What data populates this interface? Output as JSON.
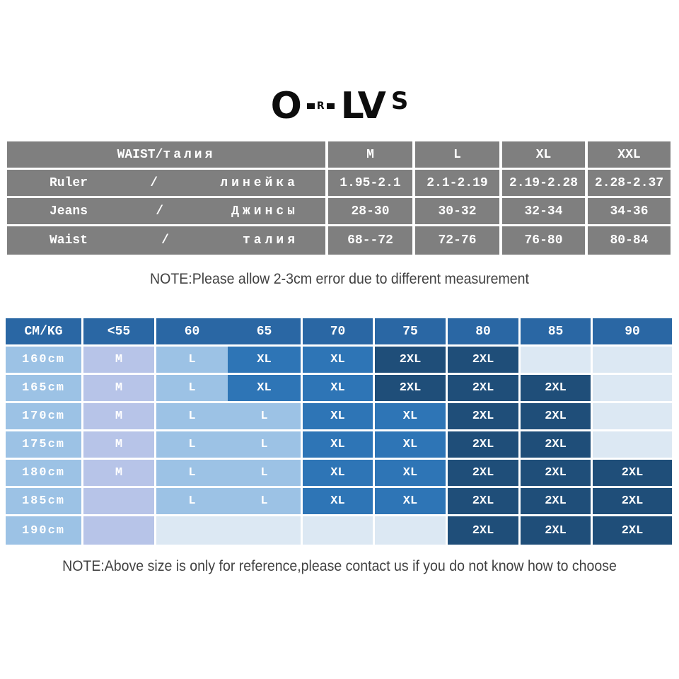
{
  "logo": {
    "o": "O",
    "r": "R",
    "lv": "LV",
    "s": "S"
  },
  "waist_table": {
    "header_left_en": "WAIST/",
    "header_left_ru": "талия",
    "size_headers": [
      "M",
      "L",
      "XL",
      "XXL"
    ],
    "rows": [
      {
        "en": "Ruler",
        "sep": "/",
        "ru": "линейка",
        "values": [
          "1.95-2.1",
          "2.1-2.19",
          "2.19-2.28",
          "2.28-2.37"
        ]
      },
      {
        "en": "Jeans",
        "sep": "/",
        "ru": "Джинсы",
        "values": [
          "28-30",
          "30-32",
          "32-34",
          "34-36"
        ]
      },
      {
        "en": "Waist",
        "sep": "/",
        "ru": "талия",
        "values": [
          "68--72",
          "72-76",
          "76-80",
          "80-84"
        ]
      }
    ]
  },
  "notes": {
    "top": "NOTE:Please allow 2-3cm error due to different measurement",
    "bottom": "NOTE:Above size is only for reference,please contact us if you do not know how to choose"
  },
  "size_chart": {
    "corner": "CM/KG",
    "weight_headers": [
      "<55",
      "60",
      "65",
      "70",
      "75",
      "80",
      "85",
      "90"
    ],
    "rows": [
      {
        "label": "160cm",
        "cells": [
          "M",
          "L",
          "XL",
          "XL",
          "2XL",
          "2XL",
          "",
          ""
        ]
      },
      {
        "label": "165cm",
        "cells": [
          "M",
          "L",
          "XL",
          "XL",
          "2XL",
          "2XL",
          "2XL",
          ""
        ]
      },
      {
        "label": "170cm",
        "cells": [
          "M",
          "L",
          "L",
          "XL",
          "XL",
          "2XL",
          "2XL",
          ""
        ]
      },
      {
        "label": "175cm",
        "cells": [
          "M",
          "L",
          "L",
          "XL",
          "XL",
          "2XL",
          "2XL",
          ""
        ]
      },
      {
        "label": "180cm",
        "cells": [
          "M",
          "L",
          "L",
          "XL",
          "XL",
          "2XL",
          "2XL",
          "2XL"
        ]
      },
      {
        "label": "185cm",
        "cells": [
          "",
          "L",
          "L",
          "XL",
          "XL",
          "2XL",
          "2XL",
          "2XL"
        ]
      },
      {
        "label": "190cm",
        "cells": [
          "",
          "",
          "",
          "",
          "",
          "2XL",
          "2XL",
          "2XL"
        ]
      }
    ]
  },
  "colors": {
    "gray": "#7f7f7f",
    "hdrblue": "#2a67a4",
    "label": "#9cc2e5",
    "m": "#b7c4e8",
    "l": "#9cc2e5",
    "xl": "#2e75b6",
    "xxl": "#1f4e79",
    "empty": "#dce8f3"
  },
  "chart_data": [
    {
      "type": "table",
      "title": "WAIST/талия",
      "columns": [
        "WAIST/талия",
        "M",
        "L",
        "XL",
        "XXL"
      ],
      "rows": [
        [
          "Ruler / линейка",
          "1.95-2.1",
          "2.1-2.19",
          "2.19-2.28",
          "2.28-2.37"
        ],
        [
          "Jeans / Джинсы",
          "28-30",
          "30-32",
          "32-34",
          "34-36"
        ],
        [
          "Waist / талия",
          "68--72",
          "72-76",
          "76-80",
          "80-84"
        ]
      ]
    },
    {
      "type": "table",
      "title": "CM/KG height-weight size matrix",
      "columns": [
        "CM/KG",
        "<55",
        "60",
        "65",
        "70",
        "75",
        "80",
        "85",
        "90"
      ],
      "rows": [
        [
          "160cm",
          "M",
          "L",
          "XL",
          "XL",
          "2XL",
          "2XL",
          "",
          ""
        ],
        [
          "165cm",
          "M",
          "L",
          "XL",
          "XL",
          "2XL",
          "2XL",
          "2XL",
          ""
        ],
        [
          "170cm",
          "M",
          "L",
          "L",
          "XL",
          "XL",
          "2XL",
          "2XL",
          ""
        ],
        [
          "175cm",
          "M",
          "L",
          "L",
          "XL",
          "XL",
          "2XL",
          "2XL",
          ""
        ],
        [
          "180cm",
          "M",
          "L",
          "L",
          "XL",
          "XL",
          "2XL",
          "2XL",
          "2XL"
        ],
        [
          "185cm",
          "",
          "L",
          "L",
          "XL",
          "XL",
          "2XL",
          "2XL",
          "2XL"
        ],
        [
          "190cm",
          "",
          "",
          "",
          "",
          "",
          "2XL",
          "2XL",
          "2XL"
        ]
      ]
    }
  ]
}
